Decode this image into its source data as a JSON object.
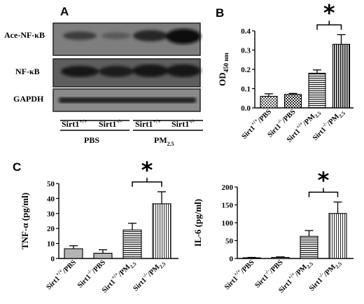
{
  "panels": {
    "a": "A",
    "b": "B",
    "c": "C"
  },
  "blot": {
    "rows": [
      "Ace-NF-κB",
      "NF-κB",
      "GAPDH"
    ],
    "lanes": [
      {
        "base": "Sirt1",
        "sup": "+/+"
      },
      {
        "base": "Sirt1",
        "sup": "-/-"
      },
      {
        "base": "Sirt1",
        "sup": "+/+"
      },
      {
        "base": "Sirt1",
        "sup": "-/-"
      }
    ],
    "groups": [
      {
        "base": "PBS",
        "sub": ""
      },
      {
        "base": "PM",
        "sub": "2.5"
      }
    ]
  },
  "categories": [
    {
      "geno": "+/+",
      "treat": "/PBS",
      "sub": ""
    },
    {
      "geno": "-/-",
      "treat": "/PBS",
      "sub": ""
    },
    {
      "geno": "+/+",
      "treat": "/PM",
      "sub": "2.5"
    },
    {
      "geno": "-/-",
      "treat": "/PM",
      "sub": "2.5"
    }
  ],
  "significance_mark": "*",
  "chart_data": [
    {
      "id": "B",
      "type": "bar",
      "ylabel": {
        "base": "OD",
        "sub": "450 nm"
      },
      "ylim": [
        0,
        0.4
      ],
      "yticks": [
        "0.0",
        "0.1",
        "0.2",
        "0.3",
        "0.4"
      ],
      "values": [
        0.06,
        0.07,
        0.18,
        0.33
      ],
      "errors": [
        0.013,
        0.005,
        0.017,
        0.05
      ],
      "patterns": [
        "dots",
        "checker",
        "hlines",
        "vlines-dense"
      ]
    },
    {
      "id": "C-left",
      "type": "bar",
      "ylabel": {
        "base": "TNF-α (pg/ml)",
        "sub": ""
      },
      "ylim": [
        0,
        50
      ],
      "yticks": [
        "0",
        "10",
        "20",
        "30",
        "40",
        "50"
      ],
      "values": [
        6.5,
        3.5,
        19,
        36.5
      ],
      "errors": [
        2,
        2.3,
        4.5,
        8
      ],
      "patterns": [
        "gray",
        "gray",
        "hlines",
        "vlines"
      ]
    },
    {
      "id": "C-right",
      "type": "bar",
      "ylabel": {
        "base": "IL-6 (pg/ml)",
        "sub": ""
      },
      "ylim": [
        0,
        200
      ],
      "yticks": [
        "0",
        "50",
        "100",
        "150",
        "200"
      ],
      "values": [
        2,
        3,
        62,
        126
      ],
      "errors": [
        1,
        1.5,
        16,
        32
      ],
      "patterns": [
        "gray",
        "gray",
        "hlines",
        "vlines"
      ]
    }
  ]
}
